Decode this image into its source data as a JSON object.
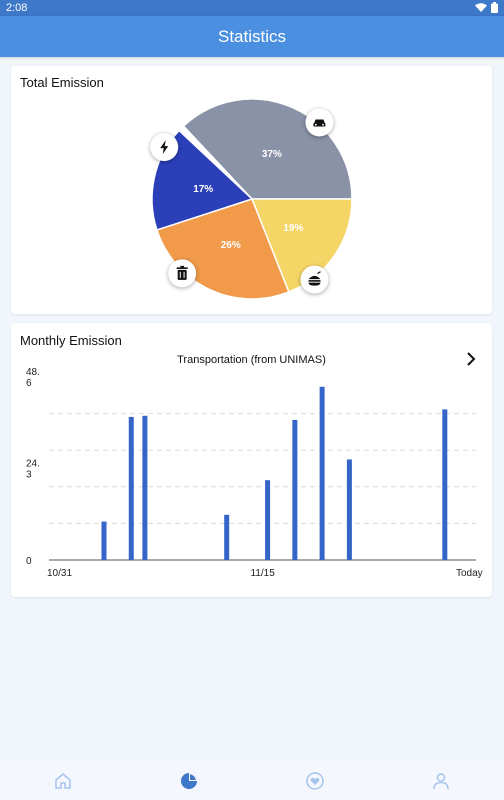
{
  "status_bar": {
    "time": "2:08"
  },
  "app_bar": {
    "title": "Statistics"
  },
  "total_emission": {
    "title": "Total Emission",
    "chart_data": {
      "type": "pie",
      "slices": [
        {
          "category": "transport",
          "icon": "car-icon",
          "percent": 37,
          "label": "37%",
          "color": "#8a92a8"
        },
        {
          "category": "food",
          "icon": "burger-icon",
          "percent": 19,
          "label": "19%",
          "color": "#f5d565"
        },
        {
          "category": "waste",
          "icon": "trash-icon",
          "percent": 26,
          "label": "26%",
          "color": "#f09a4a"
        },
        {
          "category": "energy",
          "icon": "bolt-icon",
          "percent": 17,
          "label": "17%",
          "color": "#2a3fb8"
        }
      ]
    }
  },
  "monthly_emission": {
    "title": "Monthly Emission",
    "subtitle": "Transportation (from UNIMAS)",
    "chart_data": {
      "type": "bar",
      "color": "#3565c9",
      "ylim": [
        0,
        48.6
      ],
      "yticks": [
        {
          "value": 0,
          "lines": [
            "0"
          ]
        },
        {
          "value": 24.3,
          "lines": [
            "24.",
            "3"
          ]
        },
        {
          "value": 48.6,
          "lines": [
            "48.",
            "6"
          ]
        }
      ],
      "xlabels": [
        {
          "day": 0,
          "label": "10/31"
        },
        {
          "day": 15,
          "label": "11/15"
        },
        {
          "day": 30,
          "label": "Today"
        }
      ],
      "days_total": 30,
      "bars": [
        {
          "day": 3.85,
          "value": 10.2
        },
        {
          "day": 5.85,
          "value": 38.0
        },
        {
          "day": 6.85,
          "value": 38.3
        },
        {
          "day": 12.85,
          "value": 12.0
        },
        {
          "day": 15.85,
          "value": 21.2
        },
        {
          "day": 17.85,
          "value": 37.2
        },
        {
          "day": 19.85,
          "value": 46.0
        },
        {
          "day": 21.85,
          "value": 26.7
        },
        {
          "day": 28.85,
          "value": 40.0
        }
      ]
    }
  },
  "bottom_nav": {
    "items": [
      {
        "name": "home",
        "icon": "home-icon",
        "active": false
      },
      {
        "name": "statistics",
        "icon": "pie-chart-icon",
        "active": true
      },
      {
        "name": "favorites",
        "icon": "heart-icon",
        "active": false
      },
      {
        "name": "profile",
        "icon": "person-icon",
        "active": false
      }
    ],
    "active_color": "#3d78c9",
    "inactive_color": "#a7c4ee"
  }
}
